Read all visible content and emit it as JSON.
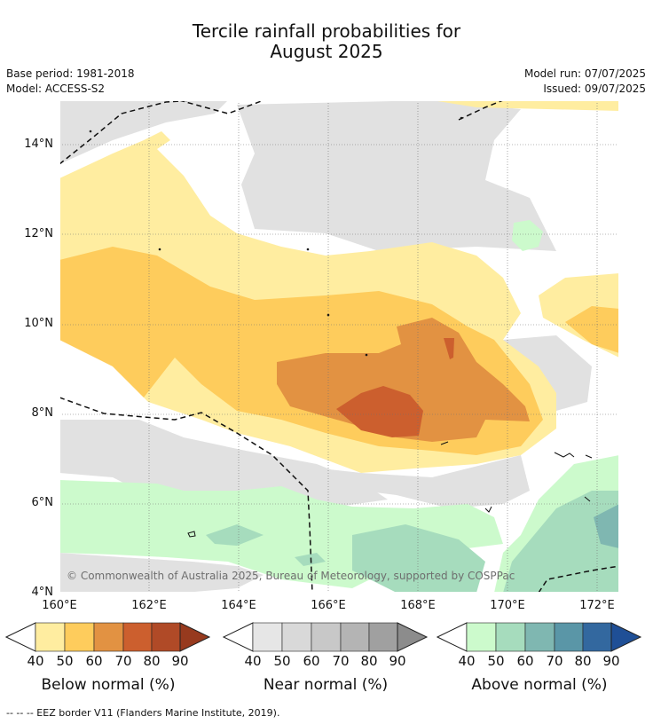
{
  "title": {
    "line1": "Tercile rainfall probabilities for",
    "line2": "August 2025"
  },
  "meta": {
    "base_period": "Base period: 1981-2018",
    "model": "Model: ACCESS-S2",
    "model_run": "Model run: 07/07/2025",
    "issued": "Issued: 09/07/2025"
  },
  "map": {
    "lat_labels": [
      "14°N",
      "12°N",
      "10°N",
      "8°N",
      "6°N",
      "4°N"
    ],
    "lon_labels": [
      "160°E",
      "162°E",
      "164°E",
      "166°E",
      "168°E",
      "170°E",
      "172°E"
    ],
    "copyright": "© Commonwealth of Australia 2025, Bureau of Meteorology, supported by COSPPac"
  },
  "colorbars": [
    {
      "label": "Below normal (%)",
      "ticks": [
        "40",
        "50",
        "60",
        "70",
        "80",
        "90"
      ],
      "colors": [
        "#ffeda0",
        "#fecc5c",
        "#e29242",
        "#cc5f2e",
        "#b04a27",
        "#973a1e"
      ]
    },
    {
      "label": "Near normal (%)",
      "ticks": [
        "40",
        "50",
        "60",
        "70",
        "80",
        "90"
      ],
      "colors": [
        "#e6e6e6",
        "#d9d9d9",
        "#c8c8c8",
        "#b4b4b4",
        "#a0a0a0",
        "#8c8c8c"
      ]
    },
    {
      "label": "Above normal (%)",
      "ticks": [
        "40",
        "50",
        "60",
        "70",
        "80",
        "90"
      ],
      "colors": [
        "#ccfacc",
        "#a6dcbd",
        "#7fb7b1",
        "#5a96a7",
        "#33689f",
        "#1f4f96"
      ]
    }
  ],
  "footer": "--  --  -- EEZ border V11 (Flanders Marine Institute, 2019)."
}
